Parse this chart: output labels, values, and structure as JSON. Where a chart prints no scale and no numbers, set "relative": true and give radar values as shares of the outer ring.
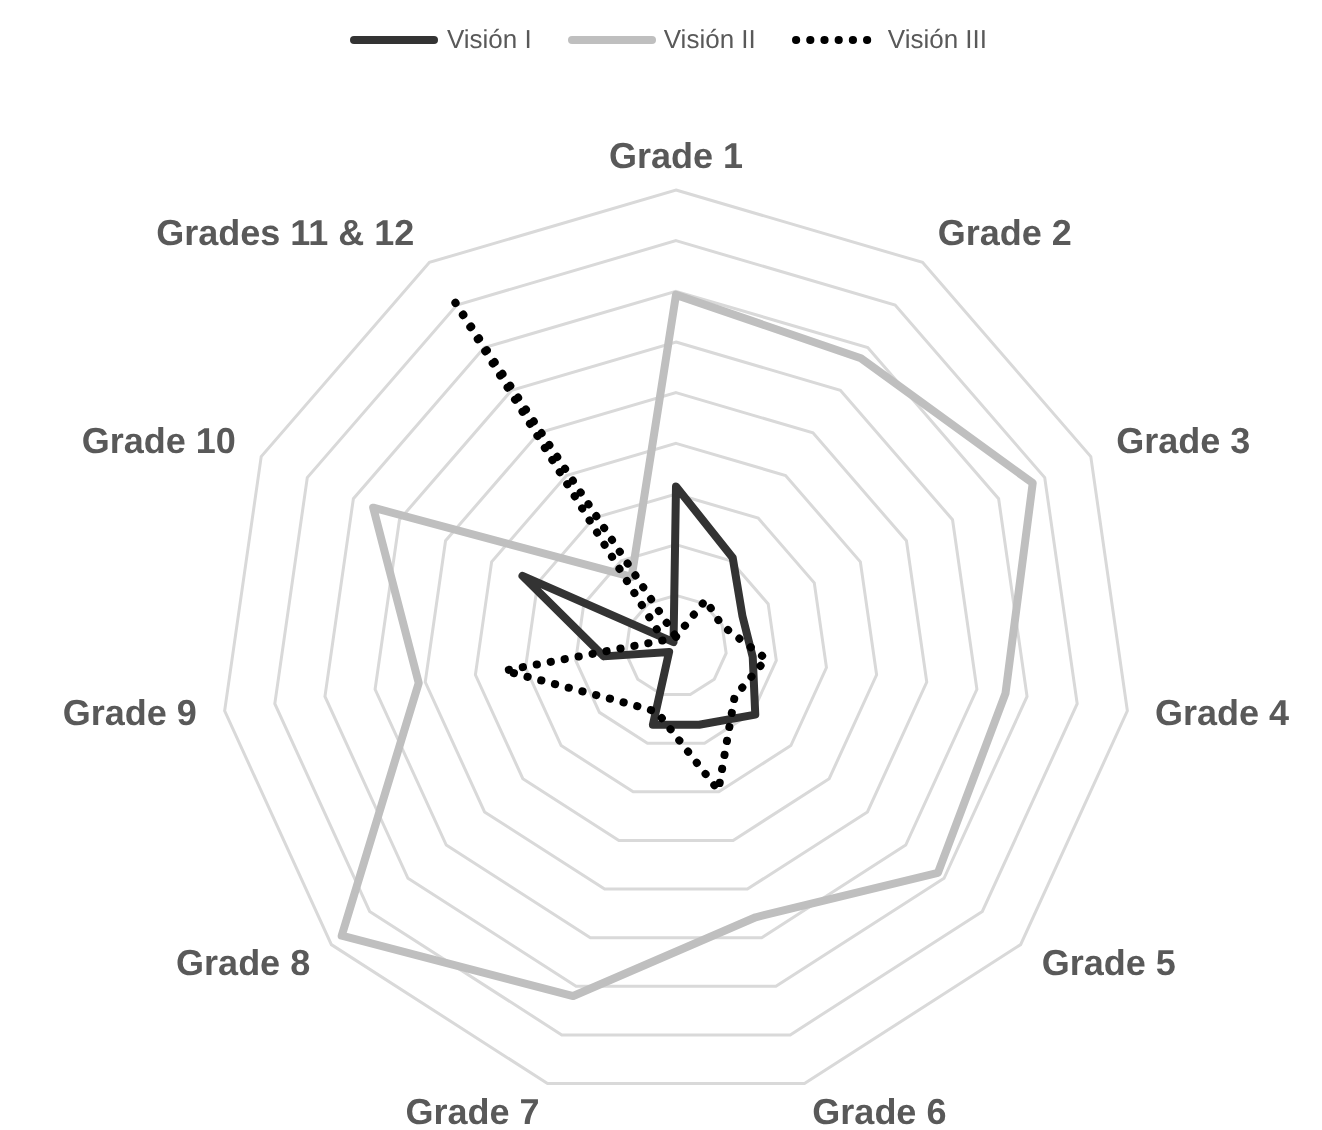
{
  "chart_data": {
    "type": "radar",
    "relative": true,
    "grid": true,
    "legend": "top",
    "marker": "none",
    "categories": [
      "Grade 1",
      "Grade 2",
      "Grade 3",
      "Grade 4",
      "Grade 5",
      "Grade 6",
      "Grade 7",
      "Grade 8",
      "Grade 9",
      "Grade 10",
      "Grades 11 & 12"
    ],
    "series": [
      {
        "name": "Visión I",
        "color": "#333333",
        "line_style": "solid",
        "values": [
          0.35,
          0.23,
          0.16,
          0.17,
          0.23,
          0.18,
          0.18,
          0.02,
          0.16,
          0.37,
          0.01
        ]
      },
      {
        "name": "Visión II",
        "color": "#bfbfbf",
        "line_style": "solid",
        "values": [
          0.77,
          0.75,
          0.86,
          0.73,
          0.76,
          0.62,
          0.8,
          0.97,
          0.57,
          0.73,
          0.18
        ]
      },
      {
        "name": "Visión III",
        "color": "#000000",
        "line_style": "dotted",
        "values": [
          0.02,
          0.12,
          0.11,
          0.2,
          0.17,
          0.33,
          0.15,
          0.18,
          0.38,
          0.03,
          0.91
        ]
      }
    ]
  }
}
